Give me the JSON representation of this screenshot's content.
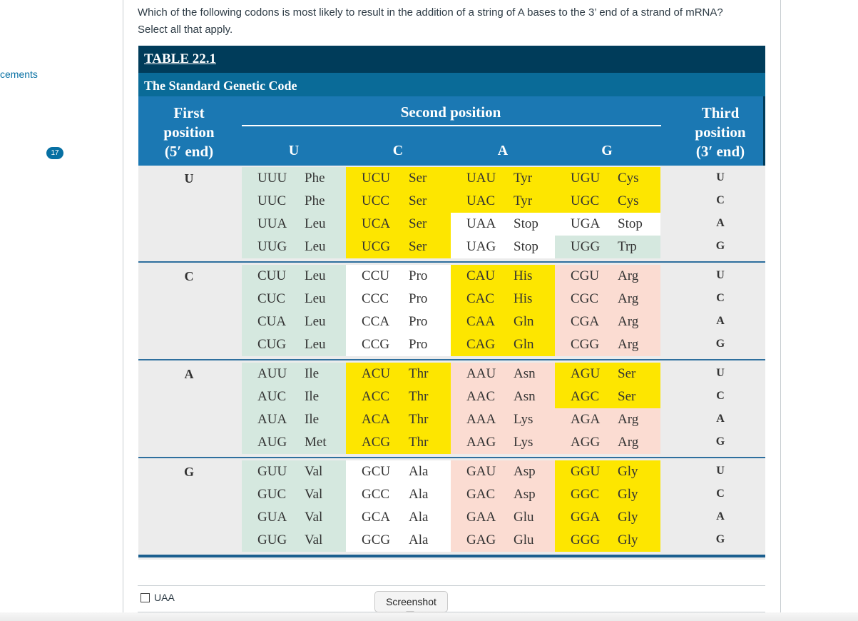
{
  "nav": {
    "partial_label": "cements",
    "badge_count": "17"
  },
  "question": {
    "line1": "Which of the following codons is most likely to result in the addition of a string of A bases to the 3’ end of a strand of mRNA?",
    "line2": "Select all that apply."
  },
  "table": {
    "label": "TABLE 22.1",
    "title": "The Standard Genetic Code",
    "first_position": [
      "First",
      "position",
      "(5′ end)"
    ],
    "second_position": "Second position",
    "third_position": [
      "Third",
      "position",
      "(3′ end)"
    ],
    "second_cols": [
      "U",
      "C",
      "A",
      "G"
    ],
    "first_letters": [
      "U",
      "C",
      "A",
      "G"
    ],
    "third_letters": [
      "U",
      "C",
      "A",
      "G"
    ],
    "blocks": [
      [
        [
          [
            "UUU",
            "Phe"
          ],
          [
            "UUC",
            "Phe"
          ],
          [
            "UUA",
            "Leu"
          ],
          [
            "UUG",
            "Leu"
          ]
        ],
        [
          [
            "UCU",
            "Ser"
          ],
          [
            "UCC",
            "Ser"
          ],
          [
            "UCA",
            "Ser"
          ],
          [
            "UCG",
            "Ser"
          ]
        ],
        [
          [
            "UAU",
            "Tyr"
          ],
          [
            "UAC",
            "Tyr"
          ],
          [
            "UAA",
            "Stop"
          ],
          [
            "UAG",
            "Stop"
          ]
        ],
        [
          [
            "UGU",
            "Cys"
          ],
          [
            "UGC",
            "Cys"
          ],
          [
            "UGA",
            "Stop"
          ],
          [
            "UGG",
            "Trp"
          ]
        ]
      ],
      [
        [
          [
            "CUU",
            "Leu"
          ],
          [
            "CUC",
            "Leu"
          ],
          [
            "CUA",
            "Leu"
          ],
          [
            "CUG",
            "Leu"
          ]
        ],
        [
          [
            "CCU",
            "Pro"
          ],
          [
            "CCC",
            "Pro"
          ],
          [
            "CCA",
            "Pro"
          ],
          [
            "CCG",
            "Pro"
          ]
        ],
        [
          [
            "CAU",
            "His"
          ],
          [
            "CAC",
            "His"
          ],
          [
            "CAA",
            "Gln"
          ],
          [
            "CAG",
            "Gln"
          ]
        ],
        [
          [
            "CGU",
            "Arg"
          ],
          [
            "CGC",
            "Arg"
          ],
          [
            "CGA",
            "Arg"
          ],
          [
            "CGG",
            "Arg"
          ]
        ]
      ],
      [
        [
          [
            "AUU",
            "Ile"
          ],
          [
            "AUC",
            "Ile"
          ],
          [
            "AUA",
            "Ile"
          ],
          [
            "AUG",
            "Met"
          ]
        ],
        [
          [
            "ACU",
            "Thr"
          ],
          [
            "ACC",
            "Thr"
          ],
          [
            "ACA",
            "Thr"
          ],
          [
            "ACG",
            "Thr"
          ]
        ],
        [
          [
            "AAU",
            "Asn"
          ],
          [
            "AAC",
            "Asn"
          ],
          [
            "AAA",
            "Lys"
          ],
          [
            "AAG",
            "Lys"
          ]
        ],
        [
          [
            "AGU",
            "Ser"
          ],
          [
            "AGC",
            "Ser"
          ],
          [
            "AGA",
            "Arg"
          ],
          [
            "AGG",
            "Arg"
          ]
        ]
      ],
      [
        [
          [
            "GUU",
            "Val"
          ],
          [
            "GUC",
            "Val"
          ],
          [
            "GUA",
            "Val"
          ],
          [
            "GUG",
            "Val"
          ]
        ],
        [
          [
            "GCU",
            "Ala"
          ],
          [
            "GCC",
            "Ala"
          ],
          [
            "GCA",
            "Ala"
          ],
          [
            "GCG",
            "Ala"
          ]
        ],
        [
          [
            "GAU",
            "Asp"
          ],
          [
            "GAC",
            "Asp"
          ],
          [
            "GAA",
            "Glu"
          ],
          [
            "GAG",
            "Glu"
          ]
        ],
        [
          [
            "GGU",
            "Gly"
          ],
          [
            "GGC",
            "Gly"
          ],
          [
            "GGA",
            "Gly"
          ],
          [
            "GGG",
            "Gly"
          ]
        ]
      ]
    ],
    "colors": {
      "green": "#d5e8df",
      "yellow": "#fde600",
      "pink": "#fbdcd2",
      "white": "#ffffff",
      "header_dark": "#003c5a",
      "header_mid": "#0a6b98",
      "header_light": "#1b78b3"
    }
  },
  "answers": [
    {
      "label": "UAA",
      "checked": false
    }
  ],
  "tooltip": "Screenshot"
}
